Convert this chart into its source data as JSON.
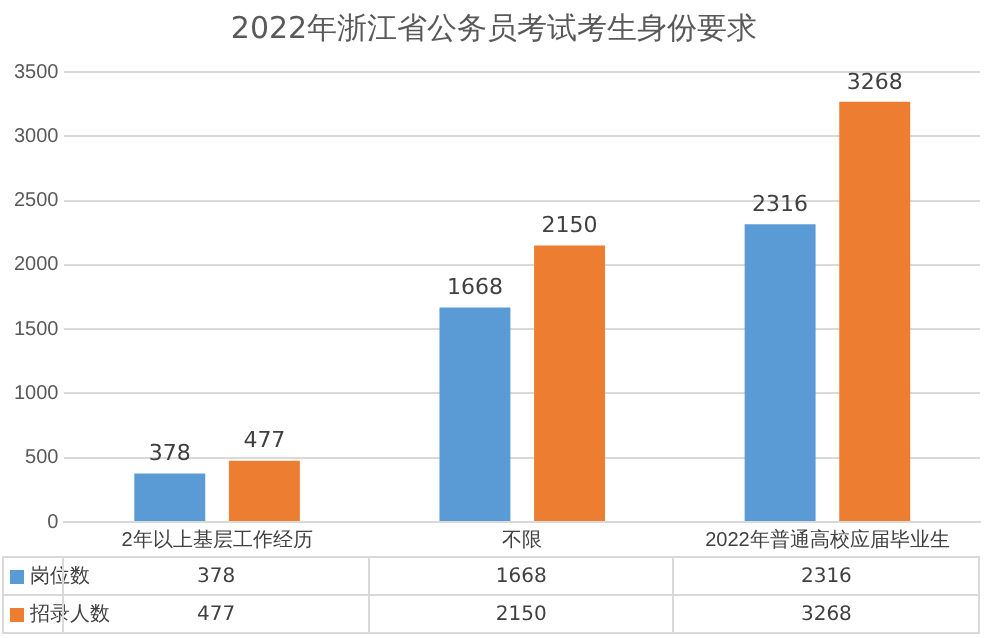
{
  "chart_data": {
    "type": "bar",
    "title": "2022年浙江省公务员考试考生身份要求",
    "categories": [
      "2年以上基层工作经历",
      "不限",
      "2022年普通高校应届毕业生"
    ],
    "series": [
      {
        "name": "岗位数",
        "color": "#5b9bd5",
        "values": [
          378,
          1668,
          2316
        ],
        "value_labels": [
          "378",
          "1668",
          "2316"
        ]
      },
      {
        "name": "招录人数",
        "color": "#ed7d31",
        "values": [
          477,
          2150,
          3268
        ],
        "value_labels": [
          "477",
          "2150",
          "3268"
        ]
      }
    ],
    "ylim": [
      0,
      3500
    ],
    "yticks": [
      0,
      500,
      1000,
      1500,
      2000,
      2500,
      3000,
      3500
    ],
    "grid": "y",
    "legend": "bottom",
    "annotations": [
      "378",
      "1668",
      "2316",
      "477",
      "2150",
      "3268"
    ]
  }
}
